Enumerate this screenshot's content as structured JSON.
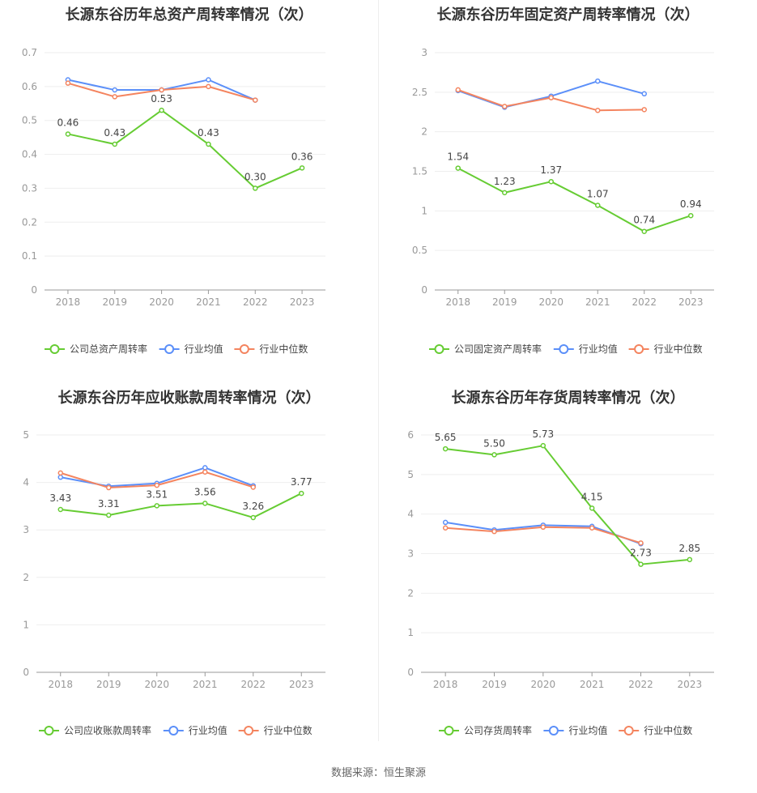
{
  "footer": {
    "source": "数据来源：恒生聚源"
  },
  "chart_data": [
    {
      "type": "line",
      "title": "长源东谷历年总资产周转率情况（次）",
      "categories": [
        "2018",
        "2019",
        "2020",
        "2021",
        "2022",
        "2023"
      ],
      "ylim": [
        0,
        0.7
      ],
      "yticks": [
        "0",
        "0.1",
        "0.2",
        "0.3",
        "0.4",
        "0.5",
        "0.6",
        "0.7"
      ],
      "grid": true,
      "legend_position": "bottom-center",
      "series": [
        {
          "name": "公司总资产周转率",
          "color": "#66cc33",
          "values": [
            0.46,
            0.43,
            0.53,
            0.43,
            0.3,
            0.36
          ],
          "labels": [
            "0.46",
            "0.43",
            "0.53",
            "0.43",
            "0.30",
            "0.36"
          ]
        },
        {
          "name": "行业均值",
          "color": "#5b8ff9",
          "values": [
            0.62,
            0.59,
            0.59,
            0.62,
            0.56,
            null
          ]
        },
        {
          "name": "行业中位数",
          "color": "#f4845f",
          "values": [
            0.61,
            0.57,
            0.59,
            0.6,
            0.56,
            null
          ]
        }
      ]
    },
    {
      "type": "line",
      "title": "长源东谷历年固定资产周转率情况（次）",
      "categories": [
        "2018",
        "2019",
        "2020",
        "2021",
        "2022",
        "2023"
      ],
      "ylim": [
        0,
        3
      ],
      "yticks": [
        "0",
        "0.5",
        "1",
        "1.5",
        "2",
        "2.5",
        "3"
      ],
      "grid": true,
      "legend_position": "bottom-center",
      "series": [
        {
          "name": "公司固定资产周转率",
          "color": "#66cc33",
          "values": [
            1.54,
            1.23,
            1.37,
            1.07,
            0.74,
            0.94
          ],
          "labels": [
            "1.54",
            "1.23",
            "1.37",
            "1.07",
            "0.74",
            "0.94"
          ]
        },
        {
          "name": "行业均值",
          "color": "#5b8ff9",
          "values": [
            2.52,
            2.31,
            2.45,
            2.64,
            2.48,
            null
          ]
        },
        {
          "name": "行业中位数",
          "color": "#f4845f",
          "values": [
            2.53,
            2.32,
            2.43,
            2.27,
            2.28,
            null
          ]
        }
      ]
    },
    {
      "type": "line",
      "title": "长源东谷历年应收账款周转率情况（次）",
      "categories": [
        "2018",
        "2019",
        "2020",
        "2021",
        "2022",
        "2023"
      ],
      "ylim": [
        0,
        5
      ],
      "yticks": [
        "0",
        "1",
        "2",
        "3",
        "4",
        "5"
      ],
      "grid": true,
      "legend_position": "bottom-center",
      "series": [
        {
          "name": "公司应收账款周转率",
          "color": "#66cc33",
          "values": [
            3.43,
            3.31,
            3.51,
            3.56,
            3.26,
            3.77
          ],
          "labels": [
            "3.43",
            "3.31",
            "3.51",
            "3.56",
            "3.26",
            "3.77"
          ]
        },
        {
          "name": "行业均值",
          "color": "#5b8ff9",
          "values": [
            4.11,
            3.92,
            3.98,
            4.31,
            3.93,
            null
          ]
        },
        {
          "name": "行业中位数",
          "color": "#f4845f",
          "values": [
            4.2,
            3.89,
            3.94,
            4.22,
            3.9,
            null
          ]
        }
      ]
    },
    {
      "type": "line",
      "title": "长源东谷历年存货周转率情况（次）",
      "categories": [
        "2018",
        "2019",
        "2020",
        "2021",
        "2022",
        "2023"
      ],
      "ylim": [
        0,
        6
      ],
      "yticks": [
        "0",
        "1",
        "2",
        "3",
        "4",
        "5",
        "6"
      ],
      "grid": true,
      "legend_position": "bottom-center",
      "series": [
        {
          "name": "公司存货周转率",
          "color": "#66cc33",
          "values": [
            5.65,
            5.5,
            5.73,
            4.15,
            2.73,
            2.85
          ],
          "labels": [
            "5.65",
            "5.50",
            "5.73",
            "4.15",
            "2.73",
            "2.85"
          ]
        },
        {
          "name": "行业均值",
          "color": "#5b8ff9",
          "values": [
            3.79,
            3.6,
            3.72,
            3.69,
            3.25,
            null
          ]
        },
        {
          "name": "行业中位数",
          "color": "#f4845f",
          "values": [
            3.65,
            3.56,
            3.67,
            3.65,
            3.27,
            null
          ]
        }
      ]
    }
  ]
}
